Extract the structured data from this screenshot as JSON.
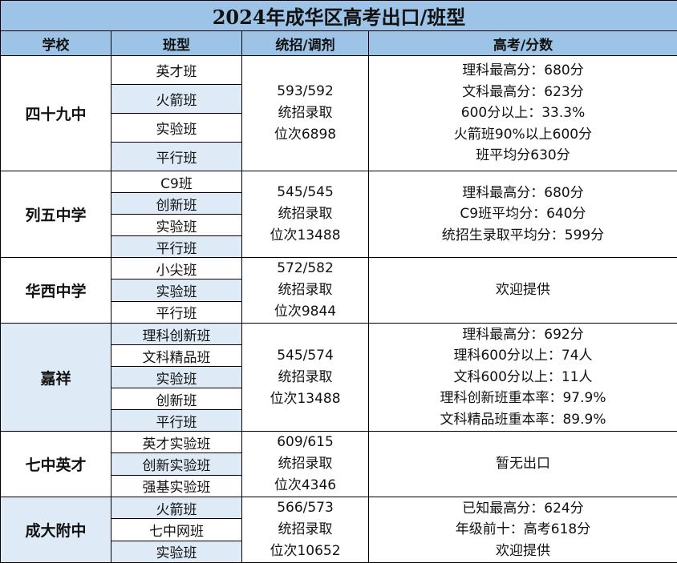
{
  "title": "2024年成华区高考出口/班型",
  "headers": {
    "school": "学校",
    "classType": "班型",
    "admission": "统招/调剂",
    "scores": "高考/分数"
  },
  "schools": [
    {
      "name": "四十九中",
      "classes": [
        "英才班",
        "火箭班",
        "实验班",
        "平行班"
      ],
      "admission": [
        "593/592",
        "统招录取",
        "位次6898"
      ],
      "scores": [
        "理科最高分：680分",
        "文科最高分：623分",
        "600分以上：33.3%",
        "火箭班90%以上600分",
        "班平均分630分"
      ]
    },
    {
      "name": "列五中学",
      "classes": [
        "C9班",
        "创新班",
        "实验班",
        "平行班"
      ],
      "admission": [
        "545/545",
        "统招录取",
        "位次13488"
      ],
      "scores": [
        "理科最高分：680分",
        "C9班平均分：640分",
        "统招生录取平均分：599分"
      ]
    },
    {
      "name": "华西中学",
      "classes": [
        "小尖班",
        "实验班",
        "平行班"
      ],
      "admission": [
        "572/582",
        "统招录取",
        "位次9844"
      ],
      "scores": [
        "欢迎提供"
      ]
    },
    {
      "name": "嘉祥",
      "classes": [
        "理科创新班",
        "文科精品班",
        "实验班",
        "创新班",
        "平行班"
      ],
      "admission": [
        "545/574",
        "统招录取",
        "位次13488"
      ],
      "scores": [
        "理科最高分：692分",
        "理科600分以上：74人",
        "文科600分以上：11人",
        "理科创新班重本率：97.9%",
        "文科精品班重本率：89.9%"
      ]
    },
    {
      "name": "七中英才",
      "classes": [
        "英才实验班",
        "创新实验班",
        "强基实验班"
      ],
      "admission": [
        "609/615",
        "统招录取",
        "位次4346"
      ],
      "scores": [
        "暂无出口"
      ]
    },
    {
      "name": "成大附中",
      "classes": [
        "火箭班",
        "七中网班",
        "实验班"
      ],
      "admission": [
        "566/573",
        "统招录取",
        "位次10652"
      ],
      "scores": [
        "已知最高分：624分",
        "年级前十：高考618分",
        "欢迎提供"
      ]
    }
  ],
  "colors": {
    "header": "#9dc3e6",
    "rowAlt": "#deebf7",
    "border": "#000000"
  }
}
